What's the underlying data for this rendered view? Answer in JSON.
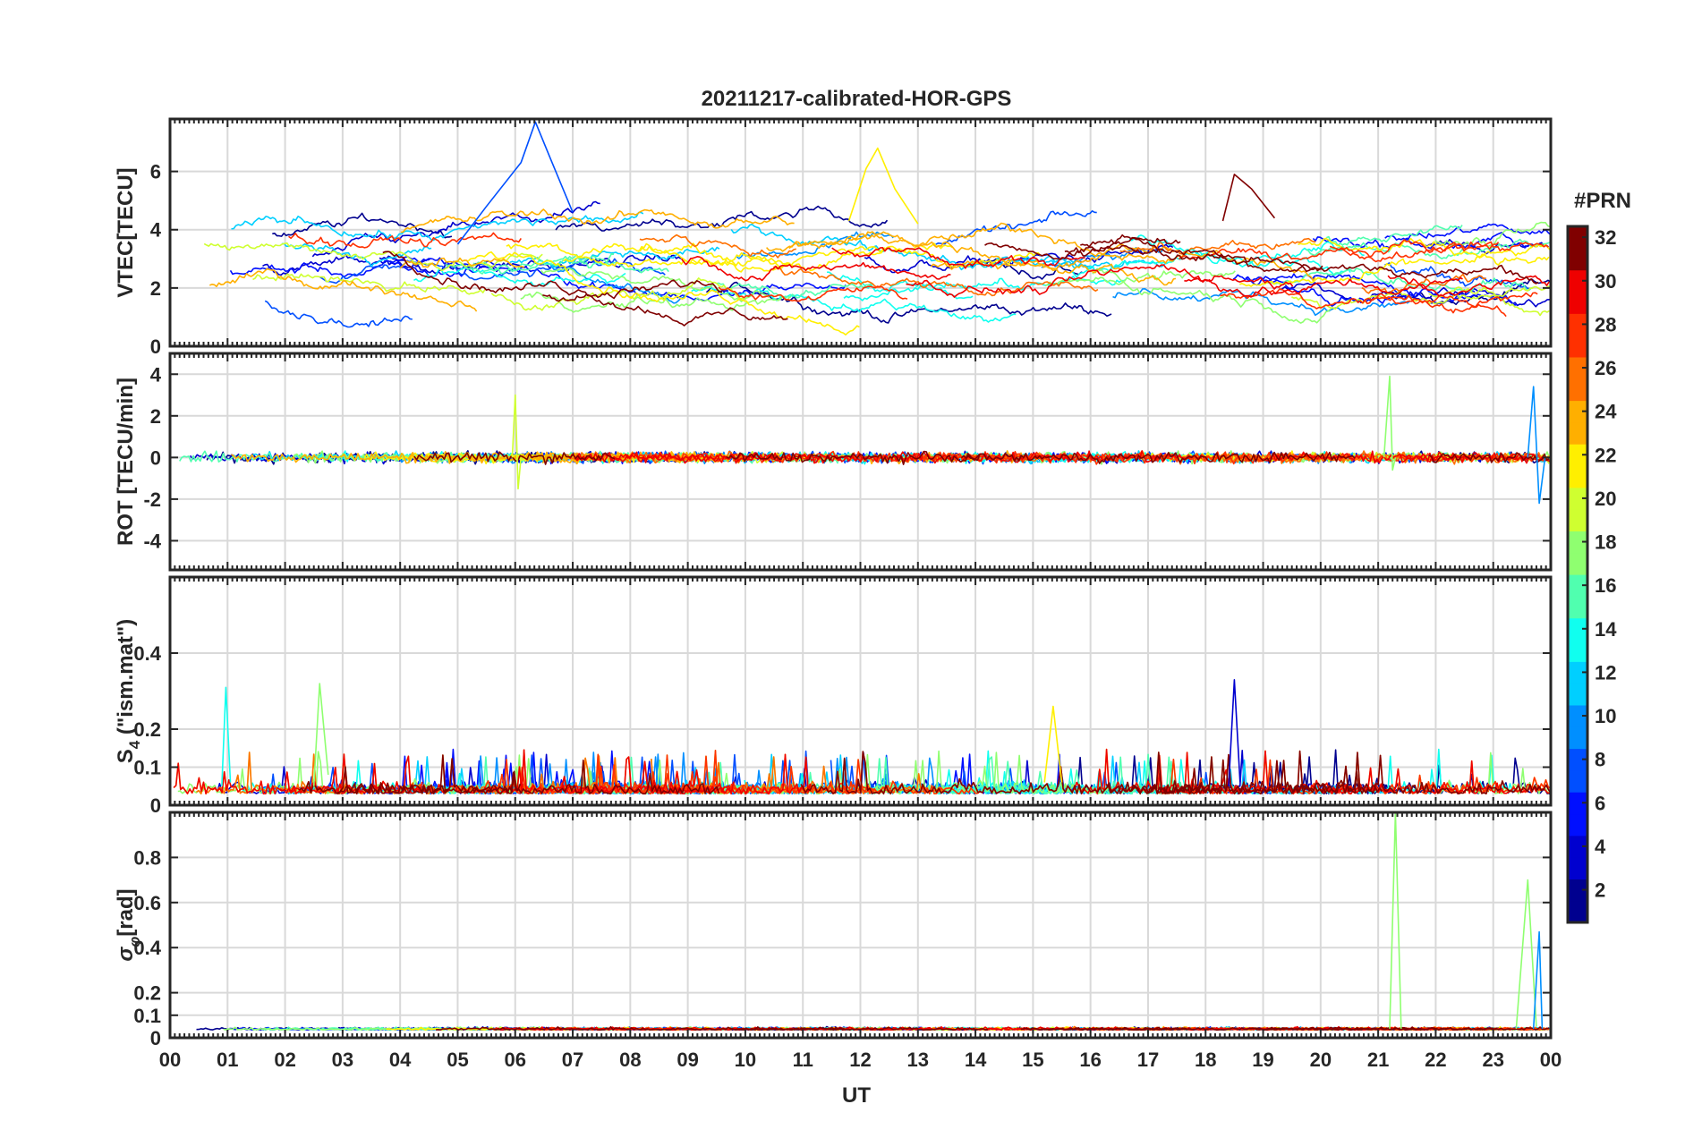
{
  "chart_data": {
    "type": "line",
    "title": "20211217-calibrated-HOR-GPS",
    "xlabel": "UT",
    "x_range_hours": [
      0,
      24
    ],
    "x_tick_labels": [
      "00",
      "01",
      "02",
      "03",
      "04",
      "05",
      "06",
      "07",
      "08",
      "09",
      "10",
      "11",
      "12",
      "13",
      "14",
      "15",
      "16",
      "17",
      "18",
      "19",
      "20",
      "21",
      "22",
      "23",
      "00"
    ],
    "colorbar": {
      "label": "#PRN",
      "range": [
        1,
        32
      ],
      "tick_labels": [
        "2",
        "4",
        "6",
        "8",
        "10",
        "12",
        "14",
        "16",
        "18",
        "20",
        "22",
        "24",
        "26",
        "28",
        "30",
        "32"
      ],
      "colormap": "jet",
      "colors": [
        "#00008f",
        "#0000cf",
        "#000fff",
        "#004fff",
        "#008fff",
        "#00cfff",
        "#10ffef",
        "#50ffaf",
        "#8fff70",
        "#cfff30",
        "#ffef00",
        "#ffaf00",
        "#ff7000",
        "#ff3000",
        "#ef0000",
        "#800000"
      ]
    },
    "panels": [
      {
        "id": "vtec",
        "ylabel": "VTEC[TECU]",
        "ylim": [
          0,
          7.8
        ],
        "y_ticks": [
          "0",
          "2",
          "4",
          "6"
        ],
        "y_tick_values": [
          0,
          2,
          4,
          6
        ],
        "series_summary": "Per-PRN VTEC tracks mostly between 1 and 5 TECU; peaks near 7.7 TECU around 06:20 UT (PRN ~7) and ~6.8 TECU near 12:15 UT (PRN ~22)"
      },
      {
        "id": "rot",
        "ylabel": "ROT [TECU/min]",
        "ylim": [
          -5.4,
          5.0
        ],
        "y_ticks": [
          "-4",
          "-2",
          "0",
          "2",
          "4"
        ],
        "y_tick_values": [
          -4,
          -2,
          0,
          2,
          4
        ],
        "series_summary": "ROT fluctuations within about ±1 TECU/min; spikes to ~3 at 06:00 UT and ~3.9 at 21:15 UT"
      },
      {
        "id": "s4",
        "ylabel": "S",
        "ylabel_sub": "4",
        "ylabel_suffix": " (\"ism.mat\")",
        "ylim": [
          0,
          0.6
        ],
        "y_ticks": [
          "0",
          "0.1",
          "0.2",
          "0.4"
        ],
        "y_tick_values": [
          0,
          0.1,
          0.2,
          0.4
        ],
        "series_summary": "S4 mostly below 0.15; maxima ~0.33 at 18:30 UT, ~0.32 at 02:35 UT, ~0.31 at 00:95 UT"
      },
      {
        "id": "sigma",
        "ylabel": "σ",
        "ylabel_sub": "φ",
        "ylabel_suffix": "[rad]",
        "ylim": [
          0,
          1.0
        ],
        "y_ticks": [
          "0",
          "0.1",
          "0.2",
          "0.4",
          "0.6",
          "0.8"
        ],
        "y_tick_values": [
          0,
          0.1,
          0.2,
          0.4,
          0.6,
          0.8
        ],
        "series_summary": "Phase sigma mostly ~0.03–0.08 rad; spike to ~1.0 at 21:20 UT and ~0.7 near 23:40 UT"
      }
    ]
  }
}
